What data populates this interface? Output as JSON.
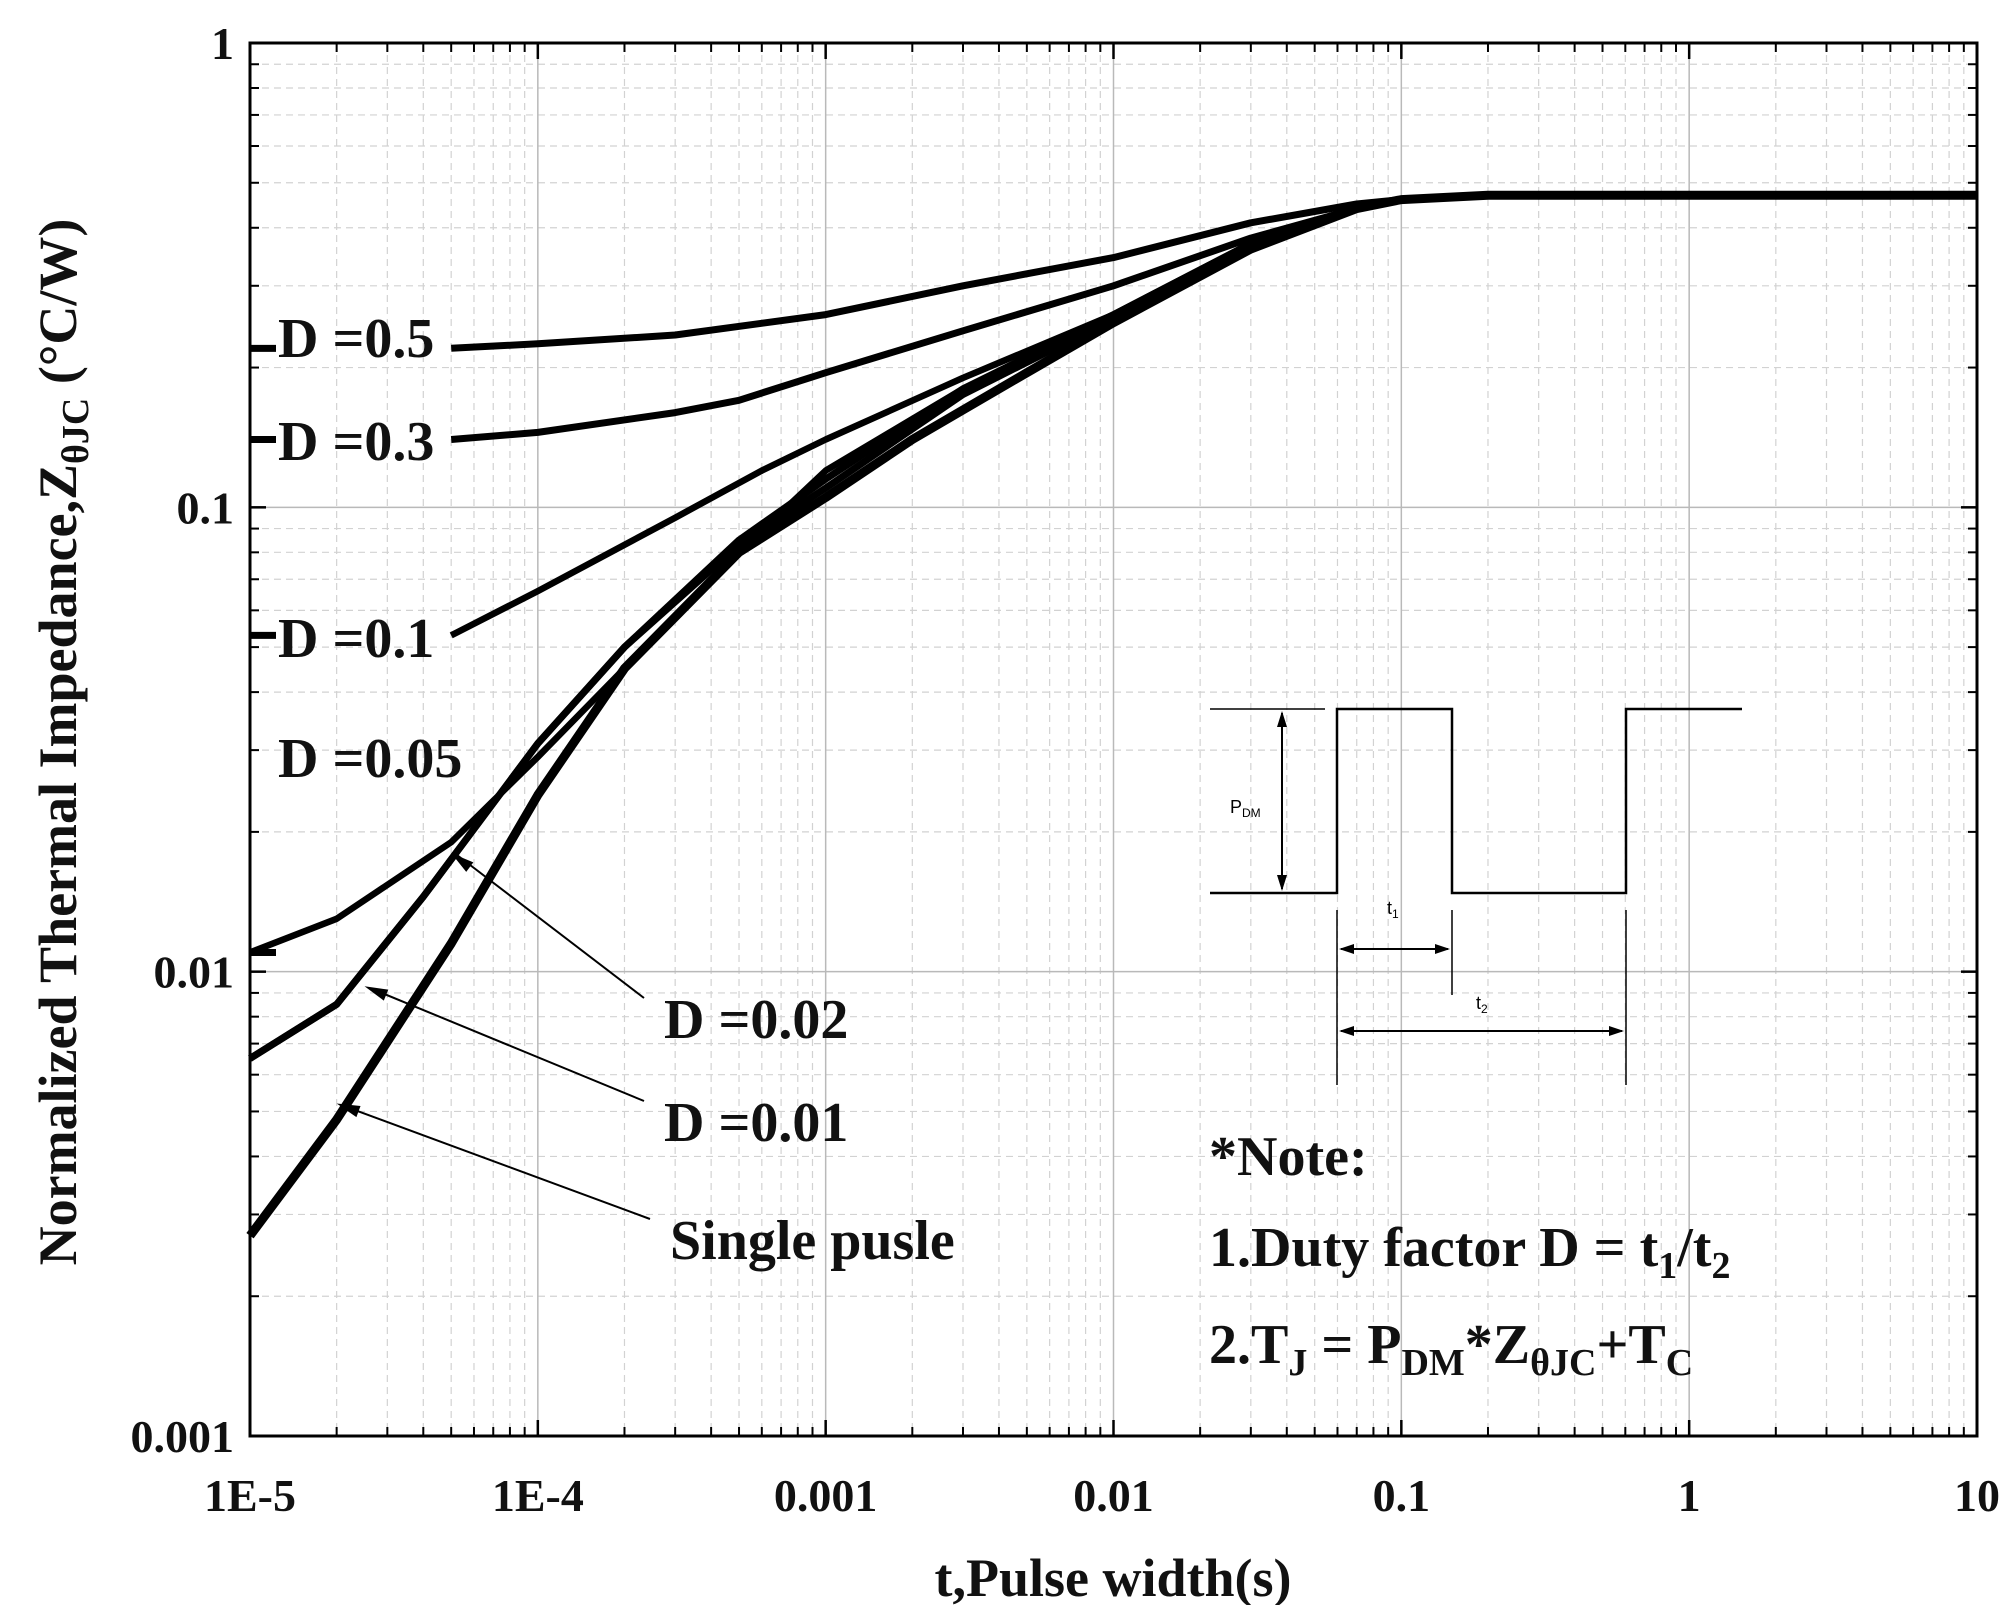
{
  "chart_data": {
    "type": "line",
    "title": "",
    "xlabel": "t,Pulse width(s)",
    "ylabel": {
      "main": "Normalized Thermal Impedance,Z",
      "subscript": "θJC",
      "unit": " (°C/W)"
    },
    "xscale": "log",
    "yscale": "log",
    "xlim": [
      1e-05,
      10
    ],
    "ylim": [
      0.001,
      1
    ],
    "grid": true,
    "x_ticks": [
      1e-05,
      0.0001,
      0.001,
      0.01,
      0.1,
      1,
      10
    ],
    "x_tick_labels": [
      "1E-5",
      "1E-4",
      "0.001",
      "0.01",
      "0.1",
      "1",
      "10"
    ],
    "y_ticks": [
      0.001,
      0.01,
      0.1,
      1
    ],
    "y_tick_labels": [
      "0.001",
      "0.01",
      "0.1",
      "1"
    ],
    "series": [
      {
        "name": "D =0.5",
        "label_anchor_x": 1e-05,
        "x": [
          5e-05,
          0.0001,
          0.0003,
          0.001,
          0.003,
          0.01,
          0.03,
          0.07,
          0.1,
          0.2,
          1,
          10
        ],
        "y": [
          0.22,
          0.225,
          0.235,
          0.26,
          0.3,
          0.345,
          0.41,
          0.45,
          0.46,
          0.47,
          0.47,
          0.47
        ]
      },
      {
        "name": "D =0.3",
        "label_anchor_x": 1e-05,
        "x": [
          5e-05,
          0.0001,
          0.0003,
          0.0005,
          0.001,
          0.003,
          0.01,
          0.03,
          0.07,
          0.1,
          0.2,
          1,
          10
        ],
        "y": [
          0.14,
          0.145,
          0.16,
          0.17,
          0.195,
          0.24,
          0.3,
          0.38,
          0.44,
          0.46,
          0.47,
          0.47,
          0.47
        ]
      },
      {
        "name": "D =0.1",
        "label_anchor_x": 1e-05,
        "x": [
          5e-05,
          0.0001,
          0.0003,
          0.0006,
          0.001,
          0.003,
          0.01,
          0.03,
          0.07,
          0.1,
          0.2,
          1,
          10
        ],
        "y": [
          0.053,
          0.066,
          0.095,
          0.12,
          0.14,
          0.19,
          0.26,
          0.37,
          0.44,
          0.46,
          0.47,
          0.47,
          0.47
        ]
      },
      {
        "name": "D =0.05",
        "label_anchor_x": 1e-05,
        "x": [
          1e-05,
          2e-05,
          5e-05,
          0.0001,
          0.0002,
          0.0005,
          0.001,
          0.003,
          0.01,
          0.03,
          0.07,
          0.1,
          0.2,
          1,
          10
        ],
        "y": [
          0.011,
          0.013,
          0.019,
          0.029,
          0.045,
          0.08,
          0.12,
          0.18,
          0.26,
          0.37,
          0.44,
          0.46,
          0.47,
          0.47,
          0.47
        ]
      },
      {
        "name": "D =0.02",
        "label_anchor_x": 1e-05,
        "x": [
          1e-05,
          2e-05,
          4e-05,
          0.0001,
          0.0002,
          0.0005,
          0.001,
          0.003,
          0.01,
          0.03,
          0.07,
          0.1,
          0.2,
          1,
          10
        ],
        "y": [
          0.0065,
          0.0085,
          0.0145,
          0.031,
          0.05,
          0.085,
          0.115,
          0.18,
          0.26,
          0.37,
          0.44,
          0.46,
          0.47,
          0.47,
          0.47
        ]
      },
      {
        "name": "D =0.01",
        "label_anchor_x": 1e-05,
        "x": [
          1e-05,
          2e-05,
          4e-05,
          0.0001,
          0.0002,
          0.0005,
          0.001,
          0.003,
          0.01,
          0.03,
          0.07,
          0.1,
          0.2,
          1,
          10
        ],
        "y": [
          0.0065,
          0.0085,
          0.0145,
          0.031,
          0.05,
          0.083,
          0.11,
          0.175,
          0.255,
          0.365,
          0.44,
          0.46,
          0.47,
          0.47,
          0.47
        ]
      },
      {
        "name": "Single pusle",
        "label_anchor_x": 1e-05,
        "x": [
          1e-05,
          2e-05,
          5e-05,
          0.0001,
          0.0002,
          0.0005,
          0.001,
          0.002,
          0.005,
          0.01,
          0.03,
          0.07,
          0.1,
          0.2,
          1,
          10
        ],
        "y": [
          0.0027,
          0.0048,
          0.0115,
          0.024,
          0.045,
          0.08,
          0.105,
          0.14,
          0.195,
          0.25,
          0.36,
          0.44,
          0.46,
          0.47,
          0.47,
          0.47
        ]
      }
    ],
    "annotations": {
      "note_title": "*Note:",
      "note_1": {
        "prefix": "1.Duty factor D = t",
        "sub1": "1",
        "mid": "/t",
        "sub2": "2"
      },
      "note_2": {
        "prefix": "2.T",
        "subJ": "J",
        "eq": " = P",
        "subDM": "DM",
        "mult": "*Z",
        "subTheta": "θJC",
        "plus": "+T",
        "subC": "C"
      },
      "inset": {
        "pdm_label": "P",
        "pdm_sub": "DM",
        "t1_label": "t",
        "t1_sub": "1",
        "t2_label": "t",
        "t2_sub": "2"
      }
    }
  }
}
